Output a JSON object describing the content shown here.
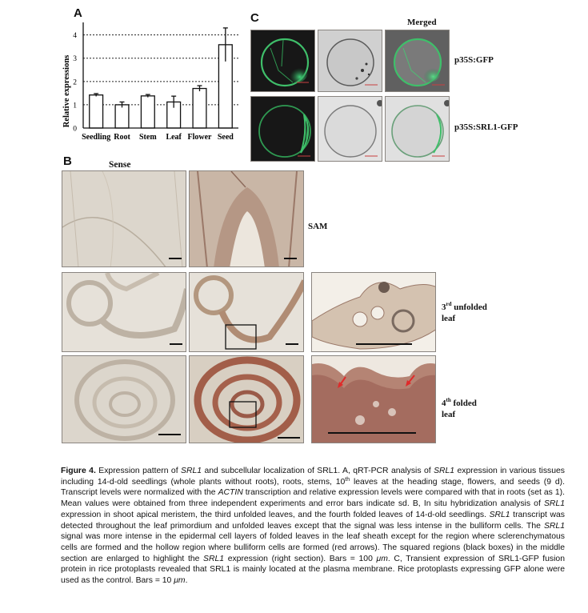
{
  "panels": {
    "a_letter": "A",
    "b_letter": "B",
    "c_letter": "C"
  },
  "chart_data": {
    "type": "bar",
    "categories": [
      "Seedling",
      "Root",
      "Stem",
      "Leaf",
      "Flower",
      "Seed"
    ],
    "values": [
      1.42,
      1.0,
      1.38,
      1.12,
      1.7,
      3.58
    ],
    "errors": [
      0.06,
      0.12,
      0.06,
      0.25,
      0.12,
      0.72
    ],
    "ylabel": "Relative expressions",
    "xlabel": "",
    "ylim": [
      0,
      4.4
    ],
    "yticks": [
      0,
      1,
      2,
      3,
      4
    ],
    "grid": "dashed horizontal at 1, 2, 3, 4",
    "legend": "none"
  },
  "panel_b": {
    "sense_label": "Sense",
    "row1_label": "SAM",
    "row2_label_num": "3",
    "row2_label_sup": "rd",
    "row2_label_line1": " unfolded",
    "row2_label_line2": "leaf",
    "row3_label_num": "4",
    "row3_label_sup": "th",
    "row3_label_line1": " folded",
    "row3_label_line2": "leaf"
  },
  "panel_c": {
    "merged_label": "Merged",
    "row1_label": "p35S:GFP",
    "row2_label": "p35S:SRL1-GFP"
  },
  "caption": {
    "figure_label": "Figure 4.",
    "t1": " Expression pattern of ",
    "g1": "SRL1",
    "t2": " and subcellular localization of SRL1. A, qRT-PCR analysis of ",
    "g2": "SRL1",
    "t3": " expression in various tissues including 14-d-old seedlings (whole plants without roots), roots, stems, 10",
    "sup_th": "th",
    "t4": " leaves at the heading stage, flowers, and seeds (9 d). Transcript levels were normalized with the ",
    "g3": "ACTIN",
    "t5": " transcription and relative expression levels were compared with that in roots (set as 1). Mean values were obtained from three independent experiments and error bars indicate sd. B, In situ hybridization analysis of ",
    "g4": "SRL1",
    "t6": " expression in shoot apical meristem, the third unfolded leaves, and the fourth folded leaves of 14-d-old seedlings. ",
    "g5": "SRL1",
    "t7": " transcript was detected throughout the leaf primordium and unfolded leaves except that the signal was less intense in the bulliform cells. The ",
    "g6": "SRL1",
    "t8": " signal was more intense in the epidermal cell layers of folded leaves in the leaf sheath except for the region where sclerenchymatous cells are formed and the hollow region where bulliform cells are formed (red arrows). The squared regions (black boxes) in the middle section are enlarged to highlight the ",
    "g7": "SRL1",
    "t9": " expression (right section). Bars = 100 ",
    "mu1": "μm",
    "t10": ". C, Transient expression of SRL1-GFP fusion protein in rice protoplasts revealed that SRL1 is mainly located at the plasma membrane. Rice protoplasts expressing GFP alone were used as the control. Bars = 10 ",
    "mu2": "μm",
    "t11": "."
  },
  "colors": {
    "gfp_green": "#3fbf6a",
    "stain_brown": "#9a5a48",
    "tissue_light": "#dcd6cc",
    "scale_red": "#c84040"
  }
}
